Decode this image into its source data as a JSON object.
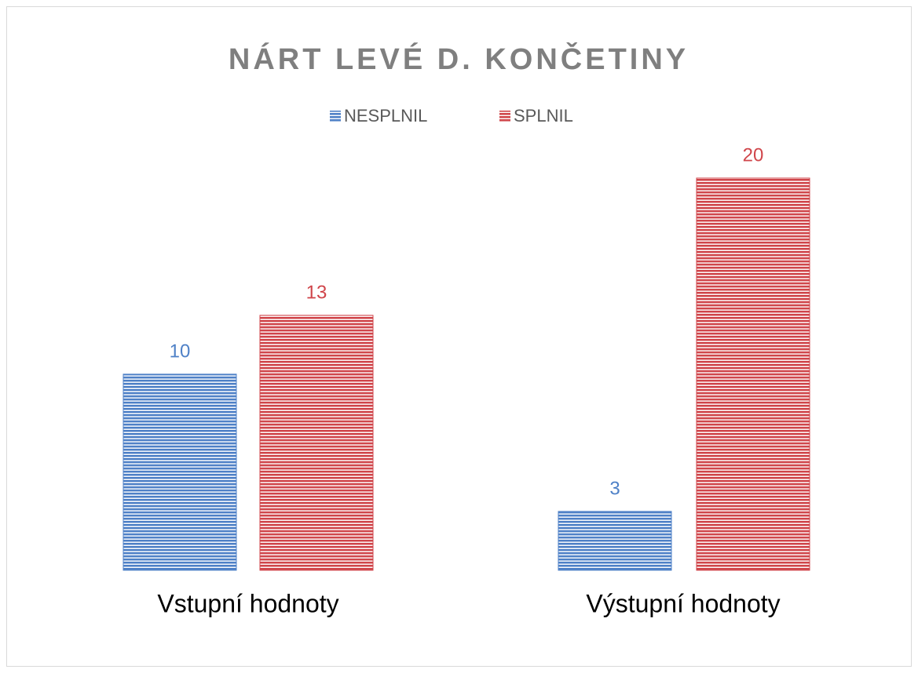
{
  "chart_data": {
    "type": "bar",
    "title": "NÁRT LEVÉ D. KONČETINY",
    "categories": [
      "Vstupní hodnoty",
      "Výstupní hodnoty"
    ],
    "series": [
      {
        "name": "NESPLNIL",
        "color": "#4f81c7",
        "values": [
          10,
          3
        ]
      },
      {
        "name": "SPLNIL",
        "color": "#d0464b",
        "values": [
          13,
          20
        ]
      }
    ],
    "legend": "top"
  }
}
